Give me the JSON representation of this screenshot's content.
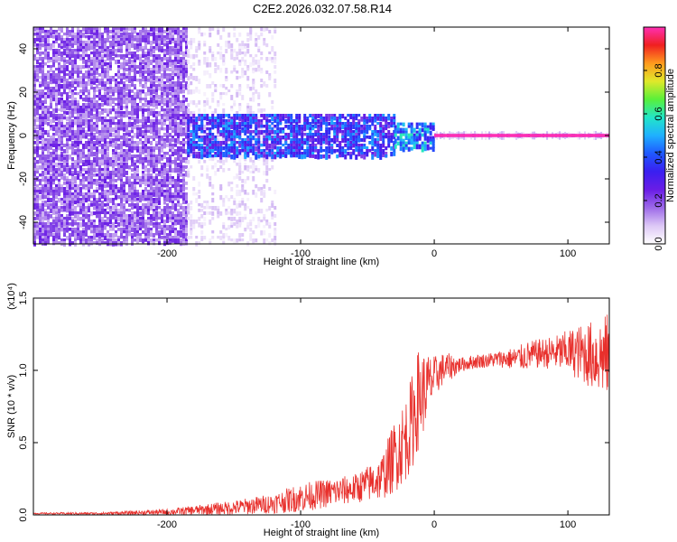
{
  "title": "C2E2.2026.032.07.58.R14",
  "colors": {
    "snr_line": "#e8302c",
    "colormap": [
      "#ffffff",
      "#ddc8f6",
      "#9d6ae8",
      "#6a1de6",
      "#3a1ff0",
      "#1f58ff",
      "#1fb0ff",
      "#22e6c8",
      "#58f03a",
      "#e0e82a",
      "#ff9a1e",
      "#f02020",
      "#ff2fb4"
    ]
  },
  "chart_data": [
    {
      "type": "heatmap",
      "xlabel": "Height of straight line (km)",
      "ylabel": "Frequency (Hz)",
      "xlim": [
        -300,
        131
      ],
      "ylim": [
        -50,
        50
      ],
      "xticks": [
        -200,
        -100,
        0,
        100
      ],
      "yticks": [
        -40,
        -20,
        0,
        20,
        40
      ],
      "colorbar": {
        "label": "Normalized spectral amplitude",
        "range": [
          0.0,
          1.0
        ],
        "ticks": [
          0.0,
          0.2,
          0.4,
          0.6,
          0.8
        ]
      },
      "regions": [
        {
          "x_range": [
            -300,
            -185
          ],
          "freq_range": [
            -50,
            50
          ],
          "amplitude": [
            0.1,
            0.25
          ],
          "fill": "dense"
        },
        {
          "x_range": [
            -185,
            -120
          ],
          "freq_range": [
            -50,
            50
          ],
          "amplitude": [
            0.02,
            0.1
          ],
          "fill": "sparse"
        },
        {
          "x_range": [
            -185,
            -30
          ],
          "freq_range": [
            -10,
            10
          ],
          "amplitude": [
            0.2,
            0.5
          ],
          "fill": "dense"
        },
        {
          "x_range": [
            -30,
            0
          ],
          "freq_range": [
            -6,
            6
          ],
          "amplitude": [
            0.3,
            0.6
          ],
          "fill": "dense"
        },
        {
          "x_range": [
            0,
            131
          ],
          "freq_range": [
            -0.8,
            0.8
          ],
          "amplitude": [
            0.8,
            1.0
          ],
          "fill": "line"
        }
      ],
      "grid": false
    },
    {
      "type": "line",
      "xlabel": "Height of straight line (km)",
      "ylabel": "SNR (10 * v/v)",
      "y_multiplier": "(x10⁴)",
      "xlim": [
        -300,
        131
      ],
      "ylim": [
        0,
        1.5
      ],
      "xticks": [
        -200,
        -100,
        0,
        100
      ],
      "yticks": [
        0.0,
        0.5,
        1.0,
        1.5
      ],
      "ytick_labels": [
        "0.0",
        "0.5",
        "1.0",
        "1.5"
      ],
      "series": [
        {
          "x": [
            -300,
            -250,
            -200,
            -150,
            -120,
            -100,
            -80,
            -60,
            -40,
            -30,
            -20,
            -15,
            -12,
            0,
            5,
            10,
            15,
            20,
            25,
            30,
            40,
            50,
            60,
            70,
            80,
            90,
            100,
            110,
            120,
            131
          ],
          "y": [
            0.01,
            0.01,
            0.02,
            0.05,
            0.08,
            0.12,
            0.15,
            0.18,
            0.25,
            0.4,
            0.55,
            0.7,
            0.8,
            0.95,
            1.0,
            1.02,
            1.03,
            1.04,
            1.05,
            1.06,
            1.07,
            1.08,
            1.08,
            1.1,
            1.12,
            1.12,
            1.13,
            1.12,
            1.1,
            1.1
          ],
          "spread": [
            0.005,
            0.008,
            0.02,
            0.05,
            0.07,
            0.1,
            0.1,
            0.1,
            0.15,
            0.25,
            0.3,
            0.35,
            0.35,
            0.15,
            0.12,
            0.1,
            0.08,
            0.05,
            0.05,
            0.05,
            0.05,
            0.06,
            0.08,
            0.1,
            0.1,
            0.12,
            0.15,
            0.2,
            0.25,
            0.3
          ]
        }
      ],
      "grid": false
    }
  ]
}
